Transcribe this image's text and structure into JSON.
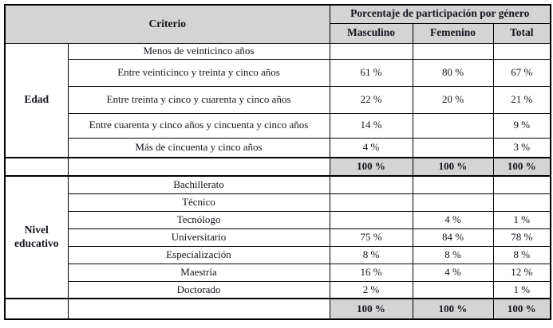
{
  "colors": {
    "header_fill": "#d4d4d4",
    "total_fill": "#d4d4d4",
    "border": "#000000",
    "text": "#15151e",
    "page_background": "#ffffff"
  },
  "table": {
    "header": {
      "criterio": "Criterio",
      "group_title": "Porcentaje de participación por género",
      "columns": [
        "Masculino",
        "Femenino",
        "Total"
      ]
    },
    "sections": [
      {
        "label": "Edad",
        "rows": [
          {
            "criteria": "Menos de veinticinco años",
            "values": [
              "",
              "",
              ""
            ]
          },
          {
            "criteria": "Entre veinticinco y treinta y cinco años",
            "values": [
              "61 %",
              "80 %",
              "67 %"
            ]
          },
          {
            "criteria": "Entre treinta y cinco y cuarenta y cinco años",
            "values": [
              "22 %",
              "20 %",
              "21 %"
            ]
          },
          {
            "criteria": "Entre cuarenta y cinco años y cincuenta y cinco años",
            "values": [
              "14 %",
              "",
              "9 %"
            ]
          },
          {
            "criteria": "Más de cincuenta y cinco años",
            "values": [
              "4 %",
              "",
              "3 %"
            ]
          }
        ],
        "total_values": [
          "100 %",
          "100 %",
          "100 %"
        ]
      },
      {
        "label": "Nivel educativo",
        "rows": [
          {
            "criteria": "Bachillerato",
            "values": [
              "",
              "",
              ""
            ]
          },
          {
            "criteria": "Técnico",
            "values": [
              "",
              "",
              ""
            ]
          },
          {
            "criteria": "Tecnólogo",
            "values": [
              "",
              "4 %",
              "1 %"
            ]
          },
          {
            "criteria": "Universitario",
            "values": [
              "75 %",
              "84 %",
              "78 %"
            ]
          },
          {
            "criteria": "Especialización",
            "values": [
              "8 %",
              "8 %",
              "8 %"
            ]
          },
          {
            "criteria": "Maestría",
            "values": [
              "16 %",
              "4 %",
              "12 %"
            ]
          },
          {
            "criteria": "Doctorado",
            "values": [
              "2 %",
              "",
              "1 %"
            ]
          }
        ],
        "total_values": [
          "100 %",
          "100 %",
          "100 %"
        ]
      }
    ]
  }
}
